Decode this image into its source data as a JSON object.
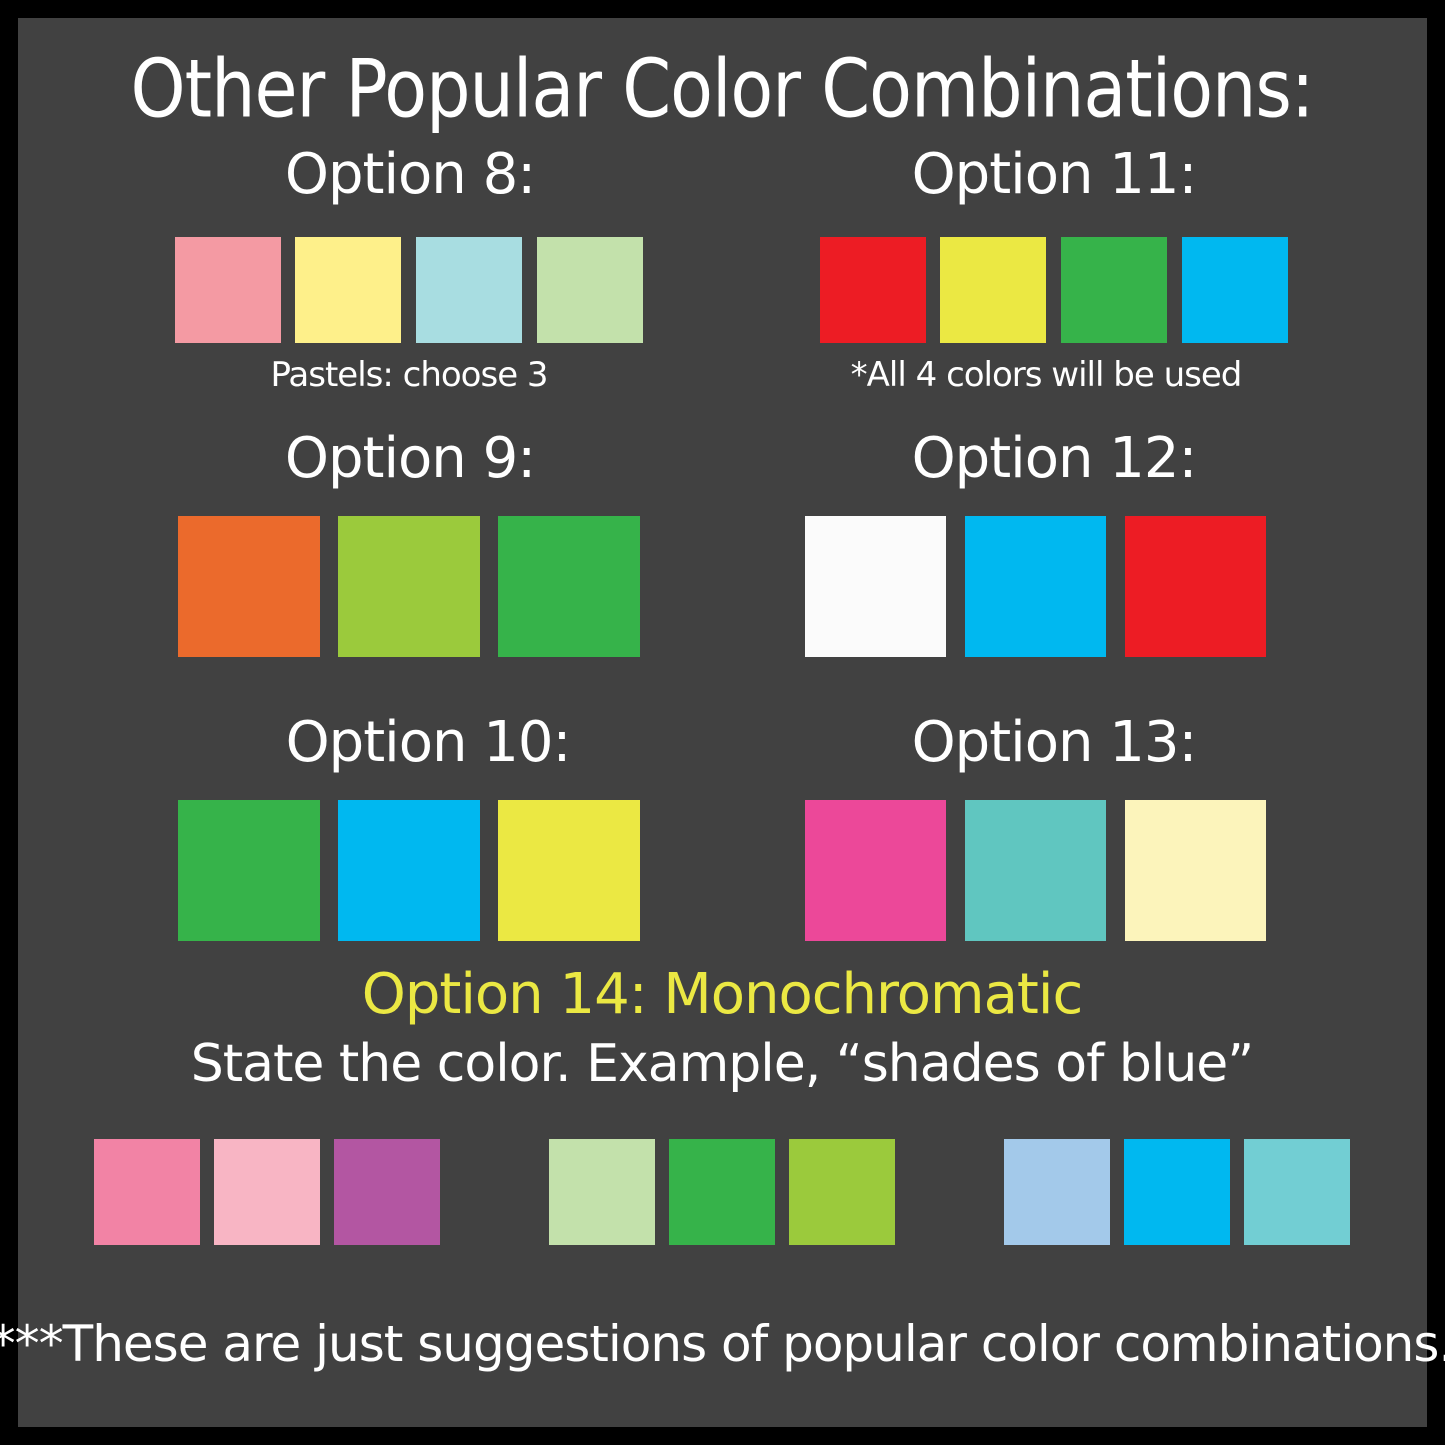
{
  "title": "Other Popular Color Combinations:",
  "options": {
    "o8": {
      "label": "Option 8:",
      "caption": "Pastels: choose 3",
      "colors": [
        "#f49aa3",
        "#fef08a",
        "#a8dde1",
        "#c3e1ab"
      ]
    },
    "o11": {
      "label": "Option 11:",
      "caption": "*All 4 colors will be used",
      "colors": [
        "#ed1c24",
        "#ebe843",
        "#36b34a",
        "#00b8f0"
      ]
    },
    "o9": {
      "label": "Option 9:",
      "colors": [
        "#eb6a2c",
        "#9bca3c",
        "#36b34a"
      ]
    },
    "o12": {
      "label": "Option 12:",
      "colors": [
        "#fbfbfb",
        "#00b8f0",
        "#ed1c24"
      ]
    },
    "o10": {
      "label": "Option 10:",
      "colors": [
        "#36b34a",
        "#00b8f0",
        "#ebe843"
      ]
    },
    "o13": {
      "label": "Option 13:",
      "colors": [
        "#ec4899",
        "#60c6c0",
        "#fcf4bb"
      ]
    },
    "o14": {
      "label": "Option 14: Monochromatic",
      "label_color": "#ebe843",
      "subtitle": "State the color.  Example, “shades of blue”",
      "colors": [
        "#f283a5",
        "#f8b5c4",
        "#b356a2",
        "#c3e1ab",
        "#36b34a",
        "#9bca3c",
        "#a3c9ea",
        "#00b8f0",
        "#72ced3"
      ]
    }
  },
  "footer": "***These are just suggestions of popular color combinations."
}
